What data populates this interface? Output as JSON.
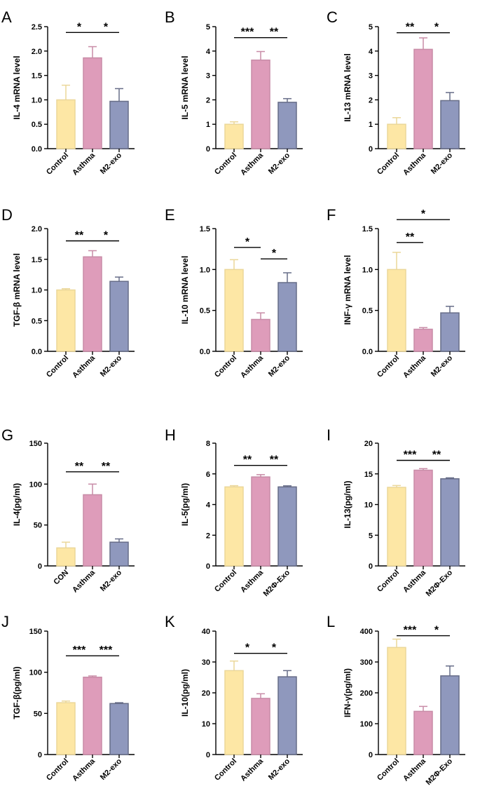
{
  "chart_data": [
    {
      "panel": "A",
      "type": "bar",
      "ylabel": "IL-4 mRNA level",
      "categories": [
        "Control",
        "Asthma",
        "M2-exo"
      ],
      "values": [
        1.0,
        1.86,
        0.97
      ],
      "errors": [
        0.3,
        0.23,
        0.26
      ],
      "ylim": [
        0,
        2.5
      ],
      "ticks": [
        "0.0",
        "0.5",
        "1.0",
        "1.5",
        "2.0",
        "2.5"
      ],
      "colors": [
        "#fde7a5",
        "#de9cba",
        "#8f98bd"
      ],
      "sig": [
        {
          "from": 0,
          "to": 1,
          "label": "*",
          "y": 2.38
        },
        {
          "from": 1,
          "to": 2,
          "label": "*",
          "y": 2.38
        }
      ]
    },
    {
      "panel": "B",
      "type": "bar",
      "ylabel": "IL-5 mRNA level",
      "categories": [
        "Control",
        "Asthma",
        "M2-exo"
      ],
      "values": [
        1.0,
        3.63,
        1.9
      ],
      "errors": [
        0.1,
        0.35,
        0.15
      ],
      "ylim": [
        0,
        5
      ],
      "ticks": [
        "0",
        "1",
        "2",
        "3",
        "4",
        "5"
      ],
      "colors": [
        "#fde7a5",
        "#de9cba",
        "#8f98bd"
      ],
      "sig": [
        {
          "from": 0,
          "to": 1,
          "label": "***",
          "y": 4.55
        },
        {
          "from": 1,
          "to": 2,
          "label": "**",
          "y": 4.55
        }
      ]
    },
    {
      "panel": "C",
      "type": "bar",
      "ylabel": "IL-13 mRNA level",
      "categories": [
        "Control",
        "Asthma",
        "M2-exo"
      ],
      "values": [
        1.0,
        4.07,
        1.97
      ],
      "errors": [
        0.27,
        0.47,
        0.33
      ],
      "ylim": [
        0,
        5
      ],
      "ticks": [
        "0",
        "1",
        "2",
        "3",
        "4",
        "5"
      ],
      "colors": [
        "#fde7a5",
        "#de9cba",
        "#8f98bd"
      ],
      "sig": [
        {
          "from": 0,
          "to": 1,
          "label": "**",
          "y": 4.75
        },
        {
          "from": 1,
          "to": 2,
          "label": "*",
          "y": 4.75
        }
      ]
    },
    {
      "panel": "D",
      "type": "bar",
      "ylabel": "TGF-β mRNA level",
      "categories": [
        "Control",
        "Asthma",
        "M2-exo"
      ],
      "values": [
        1.0,
        1.54,
        1.14
      ],
      "errors": [
        0.02,
        0.1,
        0.07
      ],
      "ylim": [
        0,
        2.0
      ],
      "ticks": [
        "0.0",
        "0.5",
        "1.0",
        "1.5",
        "2.0"
      ],
      "colors": [
        "#fde7a5",
        "#de9cba",
        "#8f98bd"
      ],
      "sig": [
        {
          "from": 0,
          "to": 1,
          "label": "**",
          "y": 1.8
        },
        {
          "from": 1,
          "to": 2,
          "label": "*",
          "y": 1.8
        }
      ]
    },
    {
      "panel": "E",
      "type": "bar",
      "ylabel": "IL-10 mRNA level",
      "categories": [
        "Control",
        "Asthma",
        "M2-exo"
      ],
      "values": [
        1.0,
        0.39,
        0.84
      ],
      "errors": [
        0.12,
        0.08,
        0.12
      ],
      "ylim": [
        0,
        1.5
      ],
      "ticks": [
        "0.0",
        "0.5",
        "1.0",
        "1.5"
      ],
      "colors": [
        "#fde7a5",
        "#de9cba",
        "#8f98bd"
      ],
      "sig": [
        {
          "from": 0,
          "to": 1,
          "label": "*",
          "y": 1.27
        },
        {
          "from": 1,
          "to": 2,
          "label": "*",
          "y": 1.13
        }
      ]
    },
    {
      "panel": "F",
      "type": "bar",
      "ylabel": "INF-γ mRNA level",
      "categories": [
        "Control",
        "Asthma",
        "M2-exo"
      ],
      "values": [
        1.0,
        0.27,
        0.47
      ],
      "errors": [
        0.21,
        0.02,
        0.08
      ],
      "ylim": [
        0,
        1.5
      ],
      "ticks": [
        "0.0",
        "0.5",
        "1.0",
        "1.5"
      ],
      "colors": [
        "#fde7a5",
        "#de9cba",
        "#8f98bd"
      ],
      "sig": [
        {
          "from": 0,
          "to": 2,
          "label": "*",
          "y": 1.61
        },
        {
          "from": 0,
          "to": 1,
          "label": "**",
          "y": 1.33
        }
      ]
    },
    {
      "panel": "G",
      "type": "bar",
      "ylabel": "IL-4(pg/ml)",
      "categories": [
        "CON",
        "Asthma",
        "M2-exo"
      ],
      "values": [
        22,
        87,
        29
      ],
      "errors": [
        7,
        13,
        4
      ],
      "ylim": [
        0,
        150
      ],
      "ticks": [
        "0",
        "50",
        "100",
        "150"
      ],
      "colors": [
        "#fde7a5",
        "#de9cba",
        "#8f98bd"
      ],
      "sig": [
        {
          "from": 0,
          "to": 1,
          "label": "**",
          "y": 115
        },
        {
          "from": 1,
          "to": 2,
          "label": "**",
          "y": 115
        }
      ]
    },
    {
      "panel": "H",
      "type": "bar",
      "ylabel": "IL-5(pg/ml)",
      "categories": [
        "Control",
        "Asthma",
        "M2Φ-Exo"
      ],
      "values": [
        5.15,
        5.8,
        5.15
      ],
      "errors": [
        0.08,
        0.15,
        0.07
      ],
      "ylim": [
        0,
        8
      ],
      "ticks": [
        "0",
        "2",
        "4",
        "6",
        "8"
      ],
      "colors": [
        "#fde7a5",
        "#de9cba",
        "#8f98bd"
      ],
      "sig": [
        {
          "from": 0,
          "to": 1,
          "label": "**",
          "y": 6.55
        },
        {
          "from": 1,
          "to": 2,
          "label": "**",
          "y": 6.55
        }
      ]
    },
    {
      "panel": "I",
      "type": "bar",
      "ylabel": "IL-13(pg/ml)",
      "categories": [
        "Control",
        "Asthma",
        "M2Φ-Exo"
      ],
      "values": [
        12.8,
        15.6,
        14.2
      ],
      "errors": [
        0.3,
        0.25,
        0.15
      ],
      "ylim": [
        0,
        20
      ],
      "ticks": [
        "0",
        "5",
        "10",
        "15",
        "20"
      ],
      "colors": [
        "#fde7a5",
        "#de9cba",
        "#8f98bd"
      ],
      "sig": [
        {
          "from": 0,
          "to": 1,
          "label": "***",
          "y": 17.2
        },
        {
          "from": 1,
          "to": 2,
          "label": "**",
          "y": 17.2
        }
      ]
    },
    {
      "panel": "J",
      "type": "bar",
      "ylabel": "TGF-β(pg/ml)",
      "categories": [
        "Control",
        "Asthma",
        "M2-exo"
      ],
      "values": [
        63,
        94,
        62
      ],
      "errors": [
        2,
        1.5,
        1
      ],
      "ylim": [
        0,
        150
      ],
      "ticks": [
        "0",
        "50",
        "100",
        "150"
      ],
      "colors": [
        "#fde7a5",
        "#de9cba",
        "#8f98bd"
      ],
      "sig": [
        {
          "from": 0,
          "to": 1,
          "label": "***",
          "y": 120
        },
        {
          "from": 1,
          "to": 2,
          "label": "***",
          "y": 120
        }
      ]
    },
    {
      "panel": "K",
      "type": "bar",
      "ylabel": "IL-10(pg/ml)",
      "categories": [
        "Control",
        "Asthma",
        "M2-exo"
      ],
      "values": [
        27.2,
        18.2,
        25.2
      ],
      "errors": [
        3.1,
        1.5,
        2.0
      ],
      "ylim": [
        0,
        40
      ],
      "ticks": [
        "0",
        "10",
        "20",
        "30",
        "40"
      ],
      "colors": [
        "#fde7a5",
        "#de9cba",
        "#8f98bd"
      ],
      "sig": [
        {
          "from": 0,
          "to": 1,
          "label": "*",
          "y": 32.8
        },
        {
          "from": 1,
          "to": 2,
          "label": "*",
          "y": 32.8
        }
      ]
    },
    {
      "panel": "L",
      "type": "bar",
      "ylabel": "IFN-γ(pg/ml)",
      "categories": [
        "Control",
        "Asthma",
        "M2Φ-Exo"
      ],
      "values": [
        347,
        140,
        255
      ],
      "errors": [
        27,
        16,
        32
      ],
      "ylim": [
        0,
        400
      ],
      "ticks": [
        "0",
        "100",
        "200",
        "300",
        "400"
      ],
      "colors": [
        "#fde7a5",
        "#de9cba",
        "#8f98bd"
      ],
      "sig": [
        {
          "from": 0,
          "to": 1,
          "label": "***",
          "y": 385
        },
        {
          "from": 1,
          "to": 2,
          "label": "*",
          "y": 385
        }
      ]
    }
  ]
}
